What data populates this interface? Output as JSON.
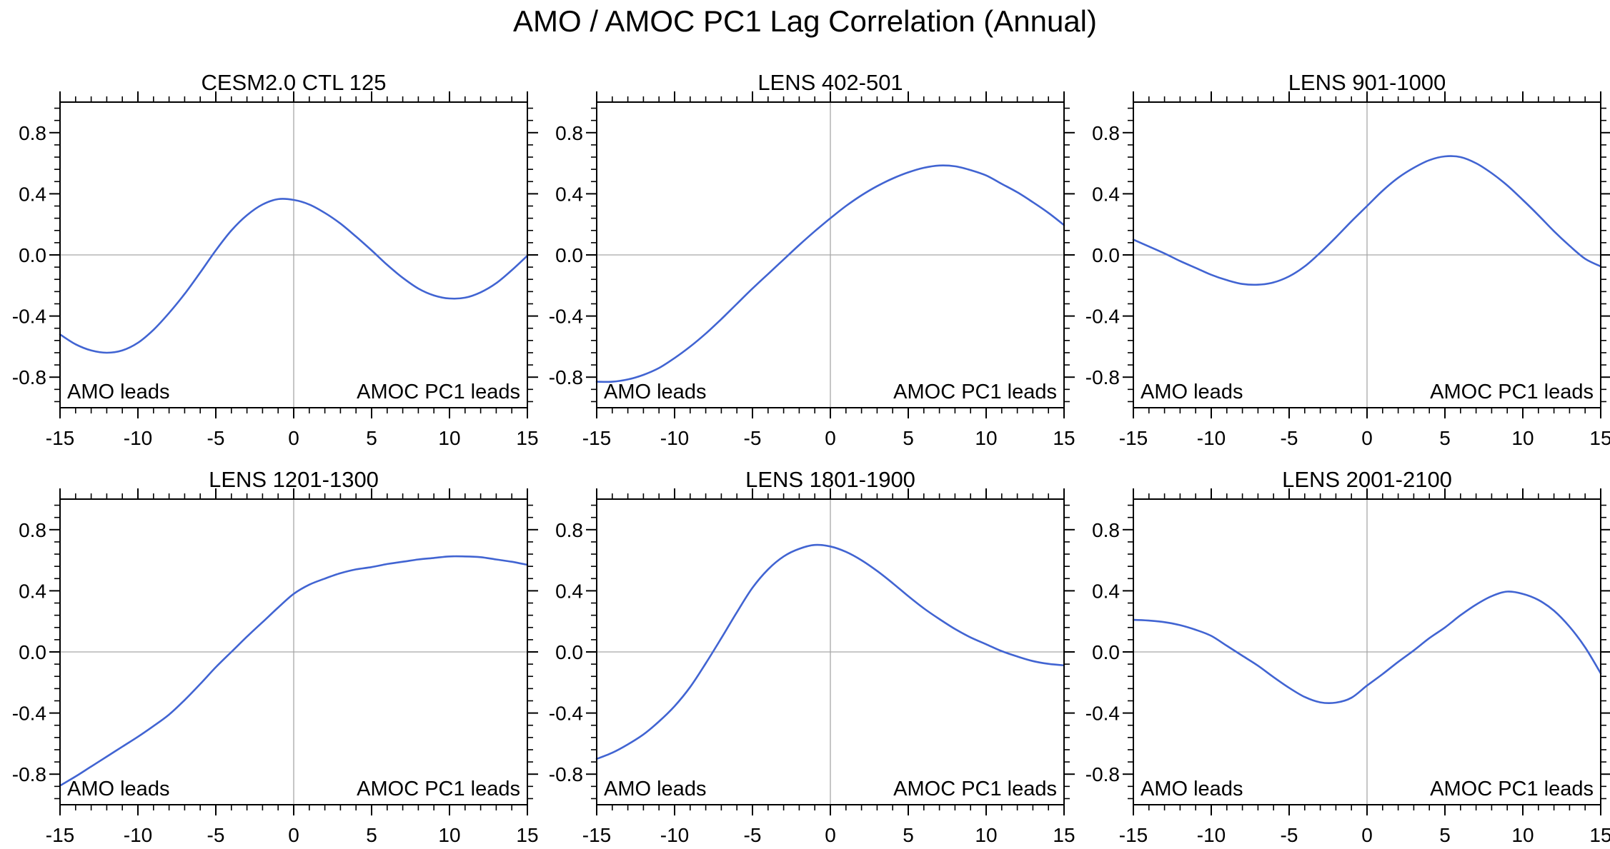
{
  "page": {
    "title": "AMO / AMOC PC1 Lag Correlation (Annual)"
  },
  "annotations": {
    "left": "AMO leads",
    "right": "AMOC PC1 leads"
  },
  "axis": {
    "xlim": [
      -15,
      15
    ],
    "ylim": [
      -1,
      1
    ],
    "xticks_major": [
      -15,
      -10,
      -5,
      0,
      5,
      10,
      15
    ],
    "yticks_major": [
      -0.8,
      -0.4,
      0.0,
      0.4,
      0.8
    ],
    "x_minor_step": 1,
    "y_minor_step": 0.08,
    "grid": "zero-lines-only",
    "legend": "none"
  },
  "colors": {
    "line": "#4164D2",
    "zero_line": "#a8a8a8",
    "frame": "#000000",
    "text": "#000000"
  },
  "chart_data": [
    {
      "type": "line",
      "title": "CESM2.0 CTL 125",
      "xlabel": "",
      "ylabel": "",
      "xlim": [
        -15,
        15
      ],
      "ylim": [
        -1,
        1
      ],
      "x": [
        -15,
        -14,
        -13,
        -12,
        -11,
        -10,
        -9,
        -8,
        -7,
        -6,
        -5,
        -4,
        -3,
        -2,
        -1,
        0,
        1,
        2,
        3,
        4,
        5,
        6,
        7,
        8,
        9,
        10,
        11,
        12,
        13,
        14,
        15
      ],
      "values": [
        -0.52,
        -0.585,
        -0.625,
        -0.64,
        -0.625,
        -0.575,
        -0.49,
        -0.38,
        -0.255,
        -0.115,
        0.03,
        0.16,
        0.26,
        0.33,
        0.365,
        0.36,
        0.33,
        0.275,
        0.205,
        0.12,
        0.03,
        -0.065,
        -0.15,
        -0.22,
        -0.265,
        -0.285,
        -0.28,
        -0.245,
        -0.185,
        -0.1,
        -0.005
      ]
    },
    {
      "type": "line",
      "title": "LENS 402-501",
      "xlabel": "",
      "ylabel": "",
      "xlim": [
        -15,
        15
      ],
      "ylim": [
        -1,
        1
      ],
      "x": [
        -15,
        -14,
        -13,
        -12,
        -11,
        -10,
        -9,
        -8,
        -7,
        -6,
        -5,
        -4,
        -3,
        -2,
        -1,
        0,
        1,
        2,
        3,
        4,
        5,
        6,
        7,
        8,
        9,
        10,
        11,
        12,
        13,
        14,
        15
      ],
      "values": [
        -0.83,
        -0.83,
        -0.815,
        -0.785,
        -0.74,
        -0.675,
        -0.6,
        -0.515,
        -0.42,
        -0.32,
        -0.22,
        -0.125,
        -0.03,
        0.065,
        0.155,
        0.24,
        0.32,
        0.39,
        0.45,
        0.5,
        0.54,
        0.57,
        0.585,
        0.58,
        0.555,
        0.52,
        0.465,
        0.41,
        0.345,
        0.275,
        0.195
      ]
    },
    {
      "type": "line",
      "title": "LENS 901-1000",
      "xlabel": "",
      "ylabel": "",
      "xlim": [
        -15,
        15
      ],
      "ylim": [
        -1,
        1
      ],
      "x": [
        -15,
        -14,
        -13,
        -12,
        -11,
        -10,
        -9,
        -8,
        -7,
        -6,
        -5,
        -4,
        -3,
        -2,
        -1,
        0,
        1,
        2,
        3,
        4,
        5,
        6,
        7,
        8,
        9,
        10,
        11,
        12,
        13,
        14,
        15
      ],
      "values": [
        0.1,
        0.055,
        0.01,
        -0.04,
        -0.085,
        -0.13,
        -0.165,
        -0.19,
        -0.195,
        -0.18,
        -0.14,
        -0.075,
        0.015,
        0.115,
        0.22,
        0.32,
        0.42,
        0.505,
        0.57,
        0.62,
        0.645,
        0.64,
        0.6,
        0.535,
        0.455,
        0.36,
        0.26,
        0.155,
        0.06,
        -0.025,
        -0.075
      ]
    },
    {
      "type": "line",
      "title": "LENS 1201-1300",
      "xlabel": "",
      "ylabel": "",
      "xlim": [
        -15,
        15
      ],
      "ylim": [
        -1,
        1
      ],
      "x": [
        -15,
        -14,
        -13,
        -12,
        -11,
        -10,
        -9,
        -8,
        -7,
        -6,
        -5,
        -4,
        -3,
        -2,
        -1,
        0,
        1,
        2,
        3,
        4,
        5,
        6,
        7,
        8,
        9,
        10,
        11,
        12,
        13,
        14,
        15
      ],
      "values": [
        -0.875,
        -0.815,
        -0.75,
        -0.685,
        -0.62,
        -0.555,
        -0.485,
        -0.41,
        -0.315,
        -0.21,
        -0.1,
        0.0,
        0.1,
        0.195,
        0.29,
        0.38,
        0.44,
        0.48,
        0.515,
        0.54,
        0.555,
        0.575,
        0.59,
        0.605,
        0.615,
        0.625,
        0.625,
        0.62,
        0.605,
        0.59,
        0.57
      ]
    },
    {
      "type": "line",
      "title": "LENS 1801-1900",
      "xlabel": "",
      "ylabel": "",
      "xlim": [
        -15,
        15
      ],
      "ylim": [
        -1,
        1
      ],
      "x": [
        -15,
        -14,
        -13,
        -12,
        -11,
        -10,
        -9,
        -8,
        -7,
        -6,
        -5,
        -4,
        -3,
        -2,
        -1,
        0,
        1,
        2,
        3,
        4,
        5,
        6,
        7,
        8,
        9,
        10,
        11,
        12,
        13,
        14,
        15
      ],
      "values": [
        -0.7,
        -0.66,
        -0.605,
        -0.54,
        -0.455,
        -0.355,
        -0.23,
        -0.075,
        0.09,
        0.26,
        0.42,
        0.54,
        0.625,
        0.675,
        0.7,
        0.69,
        0.655,
        0.6,
        0.53,
        0.45,
        0.365,
        0.285,
        0.215,
        0.15,
        0.095,
        0.05,
        0.005,
        -0.03,
        -0.06,
        -0.078,
        -0.088
      ]
    },
    {
      "type": "line",
      "title": "LENS 2001-2100",
      "xlabel": "",
      "ylabel": "",
      "xlim": [
        -15,
        15
      ],
      "ylim": [
        -1,
        1
      ],
      "x": [
        -15,
        -14,
        -13,
        -12,
        -11,
        -10,
        -9,
        -8,
        -7,
        -6,
        -5,
        -4,
        -3,
        -2,
        -1,
        0,
        1,
        2,
        3,
        4,
        5,
        6,
        7,
        8,
        9,
        10,
        11,
        12,
        13,
        14,
        15
      ],
      "values": [
        0.21,
        0.205,
        0.195,
        0.175,
        0.145,
        0.105,
        0.04,
        -0.025,
        -0.09,
        -0.165,
        -0.235,
        -0.295,
        -0.33,
        -0.332,
        -0.3,
        -0.22,
        -0.145,
        -0.065,
        0.01,
        0.09,
        0.16,
        0.24,
        0.31,
        0.365,
        0.395,
        0.38,
        0.34,
        0.27,
        0.165,
        0.03,
        -0.14
      ]
    }
  ]
}
